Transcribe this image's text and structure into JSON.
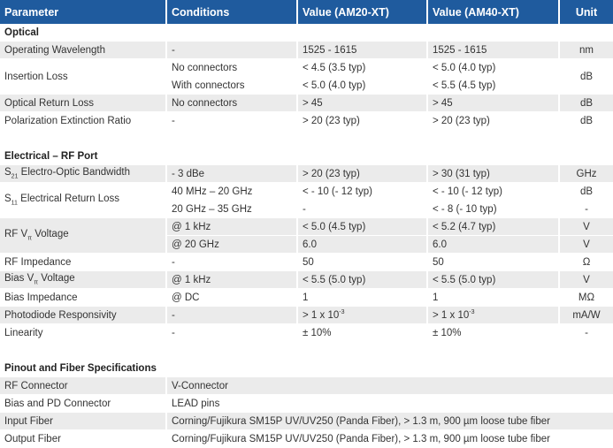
{
  "header": [
    "Parameter",
    "Conditions",
    "Value (AM20-XT)",
    "Value (AM40-XT)",
    "Unit"
  ],
  "sections": [
    {
      "title": "Optical",
      "rows": [
        {
          "param": [
            "Operating Wavelength"
          ],
          "cond": [
            "-"
          ],
          "v20": [
            "1525 - 1615"
          ],
          "v40": [
            "1525 - 1615"
          ],
          "unit": [
            "nm"
          ]
        },
        {
          "param": [
            "Insertion Loss"
          ],
          "cond": [
            "No connectors",
            "With connectors"
          ],
          "v20": [
            "< 4.5 (3.5 typ)",
            "< 5.0 (4.0 typ)"
          ],
          "v40": [
            "< 5.0 (4.0 typ)",
            "< 5.5 (4.5 typ)"
          ],
          "unit": [
            "dB"
          ]
        },
        {
          "param": [
            "Optical Return Loss"
          ],
          "cond": [
            "No connectors"
          ],
          "v20": [
            "> 45"
          ],
          "v40": [
            "> 45"
          ],
          "unit": [
            "dB"
          ]
        },
        {
          "param": [
            "Polarization Extinction Ratio"
          ],
          "cond": [
            "-"
          ],
          "v20": [
            "> 20 (23 typ)"
          ],
          "v40": [
            "> 20 (23 typ)"
          ],
          "unit": [
            "dB"
          ]
        }
      ]
    },
    {
      "title": "Electrical – RF Port",
      "rows": [
        {
          "param": [
            "S",
            {
              "sub": "21"
            },
            " Electro-Optic Bandwidth"
          ],
          "cond": [
            "- 3 dBe"
          ],
          "v20": [
            "> 20 (23 typ)"
          ],
          "v40": [
            "> 30 (31 typ)"
          ],
          "unit": [
            "GHz"
          ]
        },
        {
          "param": [
            "S",
            {
              "sub": "11"
            },
            " Electrical Return Loss"
          ],
          "cond": [
            "40 MHz – 20 GHz",
            "20 GHz – 35 GHz"
          ],
          "v20": [
            "< - 10 (- 12 typ)",
            "-"
          ],
          "v40": [
            "< - 10 (- 12 typ)",
            "< - 8 (- 10 typ)"
          ],
          "unit": [
            "dB",
            "-"
          ]
        },
        {
          "param": [
            "RF V",
            {
              "sub": "π"
            },
            " Voltage"
          ],
          "cond": [
            "@ 1 kHz",
            "@ 20 GHz"
          ],
          "v20": [
            "< 5.0 (4.5 typ)",
            "6.0"
          ],
          "v40": [
            "< 5.2 (4.7 typ)",
            "6.0"
          ],
          "unit": [
            "V",
            "V"
          ]
        },
        {
          "param": [
            "RF Impedance"
          ],
          "cond": [
            "-"
          ],
          "v20": [
            "50"
          ],
          "v40": [
            "50"
          ],
          "unit": [
            "Ω"
          ]
        },
        {
          "param": [
            "Bias V",
            {
              "sub": "π"
            },
            " Voltage"
          ],
          "cond": [
            "@ 1 kHz"
          ],
          "v20": [
            "< 5.5 (5.0 typ)"
          ],
          "v40": [
            "< 5.5 (5.0 typ)"
          ],
          "unit": [
            "V"
          ]
        },
        {
          "param": [
            "Bias Impedance"
          ],
          "cond": [
            "@ DC"
          ],
          "v20": [
            "1"
          ],
          "v40": [
            "1"
          ],
          "unit": [
            "MΩ"
          ]
        },
        {
          "param": [
            "Photodiode Responsivity"
          ],
          "cond": [
            "-"
          ],
          "v20": [
            [
              "> 1 x 10",
              {
                "sup": "-3"
              }
            ]
          ],
          "v40": [
            [
              "> 1 x 10",
              {
                "sup": "-3"
              }
            ]
          ],
          "unit": [
            "mA/W"
          ]
        },
        {
          "param": [
            "Linearity"
          ],
          "cond": [
            "-"
          ],
          "v20": [
            "± 10%"
          ],
          "v40": [
            "± 10%"
          ],
          "unit": [
            "-"
          ]
        }
      ]
    },
    {
      "title": "Pinout and Fiber Specifications",
      "rows": [
        {
          "param": [
            "RF Connector"
          ],
          "spec": "V-Connector"
        },
        {
          "param": [
            "Bias and PD Connector"
          ],
          "spec": "LEAD pins"
        },
        {
          "param": [
            "Input Fiber"
          ],
          "spec": "Corning/Fujikura SM15P UV/UV250 (Panda Fiber), > 1.3 m, 900 µm loose tube fiber"
        },
        {
          "param": [
            "Output Fiber"
          ],
          "spec": "Corning/Fujikura SM15P UV/UV250 (Panda Fiber), > 1.3 m, 900 µm loose tube fiber"
        }
      ]
    }
  ]
}
